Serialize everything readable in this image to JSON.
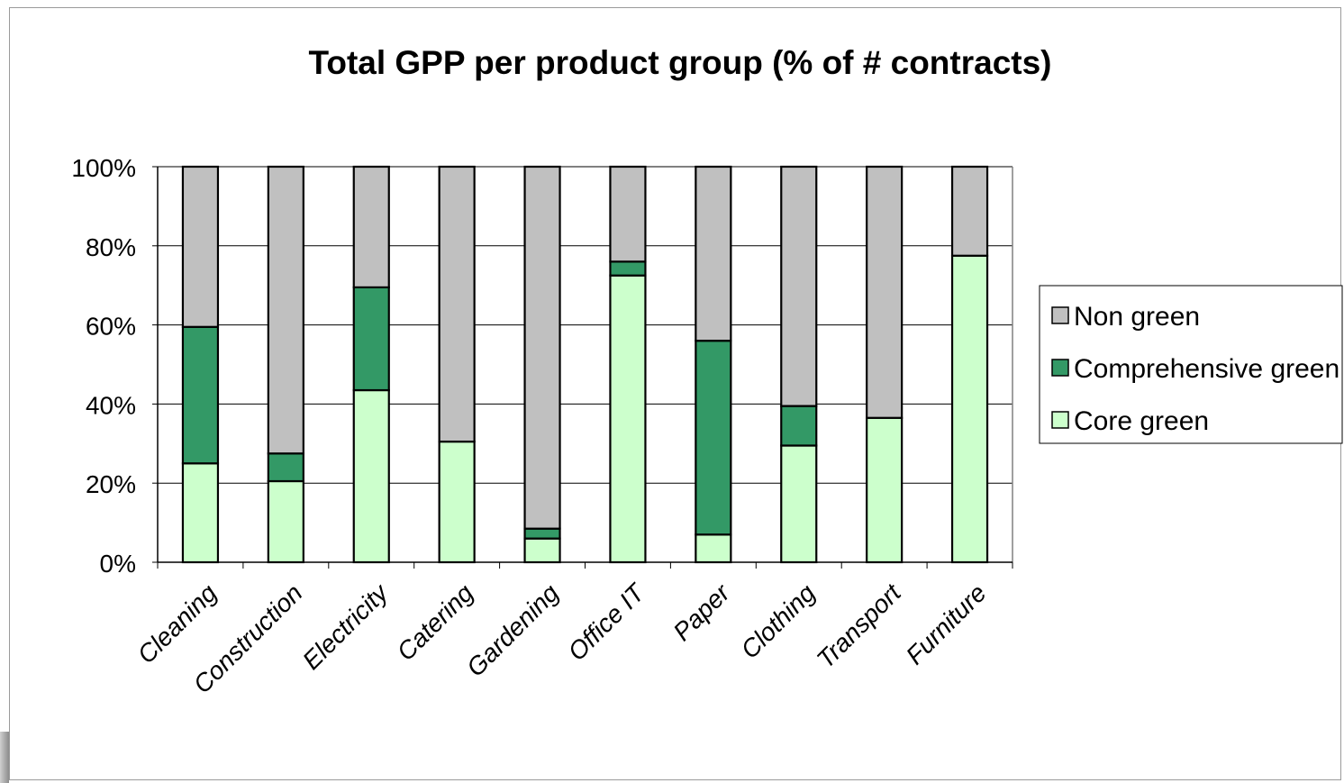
{
  "chart_data": {
    "type": "bar",
    "stacked": true,
    "title": "Total GPP per product group (% of # contracts)",
    "xlabel": "",
    "ylabel": "",
    "ylim": [
      0,
      100
    ],
    "yticks": [
      "0%",
      "20%",
      "40%",
      "60%",
      "80%",
      "100%"
    ],
    "ytick_values": [
      0,
      20,
      40,
      60,
      80,
      100
    ],
    "grid": true,
    "legend_position": "right",
    "categories": [
      "Cleaning",
      "Construction",
      "Electricity",
      "Catering",
      "Gardening",
      "Office IT",
      "Paper",
      "Clothing",
      "Transport",
      "Furniture"
    ],
    "series": [
      {
        "name": "Core green",
        "color": "#ccffcc",
        "values": [
          25,
          20.5,
          43.5,
          30.5,
          6,
          72.5,
          7,
          29.5,
          36.5,
          77.5
        ]
      },
      {
        "name": "Comprehensive green",
        "color": "#339966",
        "values": [
          34.5,
          7,
          26,
          0,
          2.5,
          3.5,
          49,
          10,
          0,
          0
        ]
      },
      {
        "name": "Non green",
        "color": "#c0c0c0",
        "values": [
          40.5,
          72.5,
          30.5,
          69.5,
          91.5,
          24,
          44,
          60.5,
          63.5,
          22.5
        ]
      }
    ],
    "legend_order": [
      "Non green",
      "Comprehensive green",
      "Core green"
    ]
  }
}
